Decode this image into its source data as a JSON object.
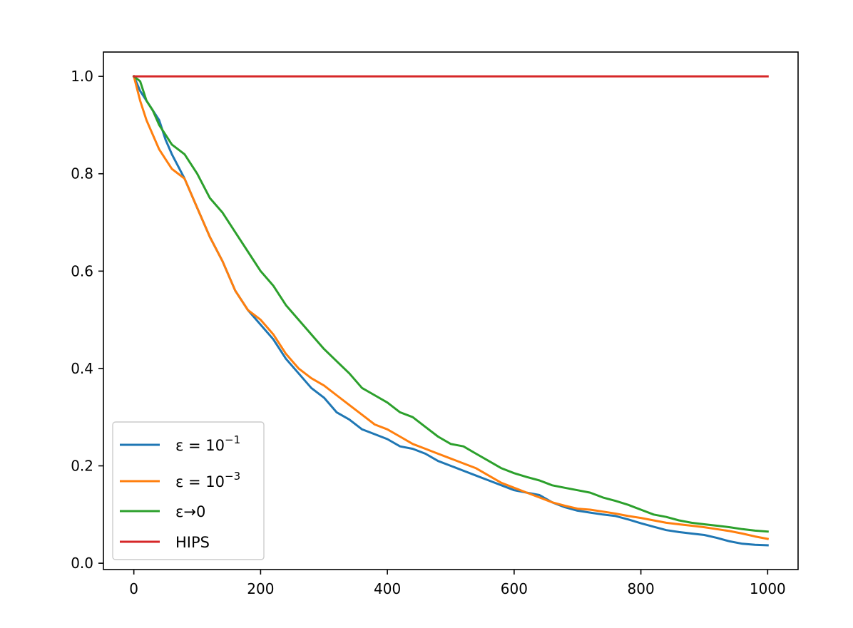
{
  "chart_data": {
    "type": "line",
    "title": "",
    "xlabel": "",
    "ylabel": "",
    "xlim": [
      -48,
      1048
    ],
    "ylim": [
      -0.013,
      1.05
    ],
    "xticks": [
      0,
      200,
      400,
      600,
      800,
      1000
    ],
    "xtick_labels": [
      "0",
      "200",
      "400",
      "600",
      "800",
      "1000"
    ],
    "yticks": [
      0.0,
      0.2,
      0.4,
      0.6,
      0.8,
      1.0
    ],
    "ytick_labels": [
      "0.0",
      "0.2",
      "0.4",
      "0.6",
      "0.8",
      "1.0"
    ],
    "grid": false,
    "legend_position": "lower-left",
    "series": [
      {
        "name": "ε = 10⁻¹",
        "label_base": "ε = 10",
        "label_exp": "−1",
        "color": "#1f77b4",
        "x": [
          0,
          10,
          20,
          30,
          40,
          50,
          60,
          80,
          100,
          120,
          140,
          160,
          180,
          200,
          220,
          240,
          260,
          280,
          300,
          320,
          340,
          360,
          380,
          400,
          420,
          440,
          460,
          480,
          500,
          520,
          540,
          560,
          580,
          600,
          620,
          640,
          660,
          680,
          700,
          720,
          740,
          760,
          780,
          800,
          820,
          840,
          860,
          880,
          900,
          920,
          940,
          960,
          980,
          1000
        ],
        "y": [
          1.0,
          0.97,
          0.95,
          0.93,
          0.91,
          0.87,
          0.84,
          0.79,
          0.73,
          0.67,
          0.62,
          0.56,
          0.52,
          0.49,
          0.46,
          0.42,
          0.39,
          0.36,
          0.34,
          0.31,
          0.295,
          0.275,
          0.265,
          0.255,
          0.24,
          0.235,
          0.225,
          0.21,
          0.2,
          0.19,
          0.18,
          0.17,
          0.16,
          0.15,
          0.145,
          0.14,
          0.125,
          0.115,
          0.108,
          0.104,
          0.1,
          0.097,
          0.09,
          0.082,
          0.075,
          0.068,
          0.064,
          0.061,
          0.058,
          0.052,
          0.045,
          0.04,
          0.038,
          0.037
        ]
      },
      {
        "name": "ε = 10⁻³",
        "label_base": "ε = 10",
        "label_exp": "−3",
        "color": "#ff7f0e",
        "x": [
          0,
          10,
          20,
          30,
          40,
          50,
          60,
          80,
          100,
          120,
          140,
          160,
          180,
          200,
          220,
          240,
          260,
          280,
          300,
          320,
          340,
          360,
          380,
          400,
          420,
          440,
          460,
          480,
          500,
          520,
          540,
          560,
          580,
          600,
          620,
          640,
          660,
          680,
          700,
          720,
          740,
          760,
          780,
          800,
          820,
          840,
          860,
          880,
          900,
          920,
          940,
          960,
          980,
          1000
        ],
        "y": [
          1.0,
          0.95,
          0.91,
          0.88,
          0.85,
          0.83,
          0.81,
          0.79,
          0.73,
          0.67,
          0.62,
          0.56,
          0.52,
          0.5,
          0.47,
          0.43,
          0.4,
          0.38,
          0.365,
          0.345,
          0.325,
          0.305,
          0.285,
          0.275,
          0.26,
          0.245,
          0.235,
          0.225,
          0.215,
          0.205,
          0.195,
          0.18,
          0.165,
          0.155,
          0.145,
          0.135,
          0.125,
          0.118,
          0.112,
          0.11,
          0.106,
          0.102,
          0.097,
          0.093,
          0.088,
          0.083,
          0.08,
          0.077,
          0.074,
          0.07,
          0.066,
          0.061,
          0.055,
          0.05
        ]
      },
      {
        "name": "ε→0",
        "label_base": "ε→0",
        "label_exp": "",
        "color": "#2ca02c",
        "x": [
          0,
          10,
          20,
          30,
          40,
          50,
          60,
          80,
          100,
          120,
          140,
          160,
          180,
          200,
          220,
          240,
          260,
          280,
          300,
          320,
          340,
          360,
          380,
          400,
          420,
          440,
          460,
          480,
          500,
          520,
          540,
          560,
          580,
          600,
          620,
          640,
          660,
          680,
          700,
          720,
          740,
          760,
          780,
          800,
          820,
          840,
          860,
          880,
          900,
          920,
          940,
          960,
          980,
          1000
        ],
        "y": [
          1.0,
          0.99,
          0.95,
          0.93,
          0.9,
          0.88,
          0.86,
          0.84,
          0.8,
          0.75,
          0.72,
          0.68,
          0.64,
          0.6,
          0.57,
          0.53,
          0.5,
          0.47,
          0.44,
          0.415,
          0.39,
          0.36,
          0.345,
          0.33,
          0.31,
          0.3,
          0.28,
          0.26,
          0.245,
          0.24,
          0.225,
          0.21,
          0.195,
          0.185,
          0.177,
          0.17,
          0.16,
          0.155,
          0.15,
          0.145,
          0.135,
          0.128,
          0.12,
          0.11,
          0.1,
          0.095,
          0.088,
          0.083,
          0.08,
          0.077,
          0.074,
          0.07,
          0.067,
          0.065
        ]
      },
      {
        "name": "HIPS",
        "label_base": "HIPS",
        "label_exp": "",
        "color": "#d62728",
        "x": [
          0,
          1000
        ],
        "y": [
          1.0,
          1.0
        ]
      }
    ]
  }
}
